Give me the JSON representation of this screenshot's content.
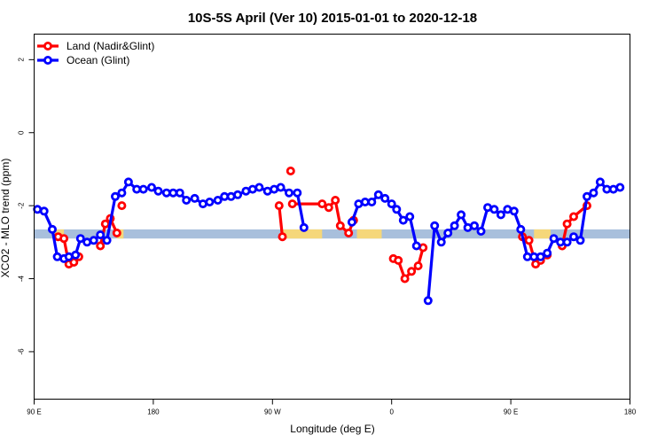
{
  "chart_data": {
    "type": "line",
    "title": "10S-5S April (Ver 10)   2015-01-01 to 2020-12-18",
    "xlabel": "Longitude (deg E)",
    "ylabel": "XCO2 - MLO trend (ppm)",
    "xlim": [
      90,
      450
    ],
    "ylim": [
      -7.3,
      2.7
    ],
    "x_ticks": [
      {
        "value": 90,
        "label": "90 E"
      },
      {
        "value": 162,
        "label": "180"
      },
      {
        "value": 234,
        "label": "90 W"
      },
      {
        "value": 306,
        "label": "0"
      },
      {
        "value": 378,
        "label": "90 E"
      },
      {
        "value": 450,
        "label": "180"
      }
    ],
    "y_ticks": [
      {
        "value": 2,
        "label": "2"
      },
      {
        "value": 0,
        "label": "0"
      },
      {
        "value": -2,
        "label": "-2"
      },
      {
        "value": -4,
        "label": "-4"
      },
      {
        "value": -6,
        "label": "-6"
      }
    ],
    "band": {
      "y_low": -2.9,
      "y_high": -2.65,
      "ocean_color": "#a8bfdc",
      "land_color": "#f5d77a",
      "land_ranges": [
        [
          101,
          108
        ],
        [
          140,
          144
        ],
        [
          239,
          264
        ],
        [
          285,
          300
        ],
        [
          392,
          402
        ]
      ]
    },
    "legend": {
      "position": "top-left"
    },
    "series": [
      {
        "name": "Land (Nadir&Glint)",
        "color": "#ff0000",
        "segments": [
          [
            [
              104.5,
              -2.85
            ],
            [
              108,
              -2.9
            ],
            [
              111,
              -3.6
            ],
            [
              114,
              -3.55
            ],
            [
              117,
              -3.4
            ]
          ],
          [
            [
              130,
              -3.1
            ],
            [
              133,
              -2.5
            ],
            [
              136,
              -2.35
            ],
            [
              140,
              -2.75
            ]
          ],
          [
            [
              143,
              -2.0
            ]
          ],
          [
            [
              238,
              -2.0
            ],
            [
              240,
              -2.85
            ]
          ],
          [
            [
              245,
              -1.05
            ]
          ],
          [
            [
              246,
              -1.95
            ],
            [
              264,
              -1.95
            ],
            [
              268,
              -2.05
            ],
            [
              272,
              -1.85
            ],
            [
              275,
              -2.55
            ],
            [
              280,
              -2.75
            ],
            [
              283,
              -2.4
            ]
          ],
          [
            [
              307,
              -3.45
            ],
            [
              310,
              -3.5
            ],
            [
              314,
              -4.0
            ],
            [
              318,
              -3.8
            ],
            [
              322,
              -3.65
            ],
            [
              325,
              -3.15
            ]
          ],
          [
            [
              385,
              -2.85
            ],
            [
              389,
              -2.95
            ],
            [
              393,
              -3.6
            ],
            [
              396,
              -3.5
            ],
            [
              400,
              -3.35
            ]
          ],
          [
            [
              409,
              -3.1
            ],
            [
              412,
              -2.5
            ],
            [
              416,
              -2.3
            ],
            [
              424,
              -2.0
            ]
          ]
        ]
      },
      {
        "name": "Ocean (Glint)",
        "color": "#0000ff",
        "segments": [
          [
            [
              92,
              -2.1
            ],
            [
              96,
              -2.15
            ],
            [
              101,
              -2.65
            ],
            [
              104,
              -3.4
            ],
            [
              108,
              -3.45
            ],
            [
              111,
              -3.4
            ],
            [
              115,
              -3.35
            ],
            [
              118,
              -2.9
            ],
            [
              122,
              -3.0
            ],
            [
              126,
              -2.95
            ],
            [
              130,
              -2.8
            ],
            [
              134,
              -2.95
            ],
            [
              139,
              -1.75
            ],
            [
              143,
              -1.65
            ],
            [
              147,
              -1.35
            ],
            [
              152,
              -1.55
            ],
            [
              156,
              -1.55
            ],
            [
              161,
              -1.5
            ],
            [
              165,
              -1.6
            ],
            [
              170,
              -1.65
            ],
            [
              174,
              -1.65
            ],
            [
              178,
              -1.65
            ],
            [
              182,
              -1.85
            ],
            [
              187,
              -1.8
            ],
            [
              192,
              -1.95
            ],
            [
              196,
              -1.9
            ],
            [
              201,
              -1.85
            ],
            [
              205,
              -1.75
            ],
            [
              209,
              -1.75
            ],
            [
              213,
              -1.7
            ],
            [
              218,
              -1.6
            ],
            [
              222,
              -1.55
            ],
            [
              226,
              -1.5
            ],
            [
              231,
              -1.6
            ],
            [
              235,
              -1.55
            ],
            [
              239,
              -1.5
            ],
            [
              244,
              -1.65
            ],
            [
              249,
              -1.65
            ],
            [
              253,
              -2.6
            ]
          ],
          [
            [
              282,
              -2.45
            ],
            [
              286,
              -1.95
            ],
            [
              290,
              -1.9
            ],
            [
              294,
              -1.9
            ],
            [
              298,
              -1.7
            ],
            [
              302,
              -1.8
            ],
            [
              306,
              -1.95
            ],
            [
              309,
              -2.1
            ],
            [
              313,
              -2.4
            ],
            [
              317,
              -2.3
            ],
            [
              321,
              -3.1
            ]
          ],
          [
            [
              328,
              -4.6
            ],
            [
              332,
              -2.55
            ],
            [
              336,
              -3.0
            ],
            [
              340,
              -2.75
            ],
            [
              344,
              -2.55
            ],
            [
              348,
              -2.25
            ],
            [
              352,
              -2.6
            ],
            [
              356,
              -2.55
            ],
            [
              360,
              -2.7
            ],
            [
              364,
              -2.05
            ],
            [
              368,
              -2.1
            ],
            [
              372,
              -2.25
            ],
            [
              376,
              -2.1
            ],
            [
              380,
              -2.15
            ],
            [
              384,
              -2.65
            ],
            [
              388,
              -3.4
            ],
            [
              392,
              -3.4
            ],
            [
              396,
              -3.4
            ],
            [
              400,
              -3.3
            ],
            [
              404,
              -2.9
            ],
            [
              408,
              -3.0
            ],
            [
              412,
              -3.0
            ],
            [
              416,
              -2.85
            ],
            [
              420,
              -2.95
            ],
            [
              424,
              -1.75
            ],
            [
              428,
              -1.65
            ],
            [
              432,
              -1.35
            ],
            [
              436,
              -1.55
            ],
            [
              440,
              -1.55
            ],
            [
              444,
              -1.5
            ]
          ]
        ]
      }
    ]
  }
}
